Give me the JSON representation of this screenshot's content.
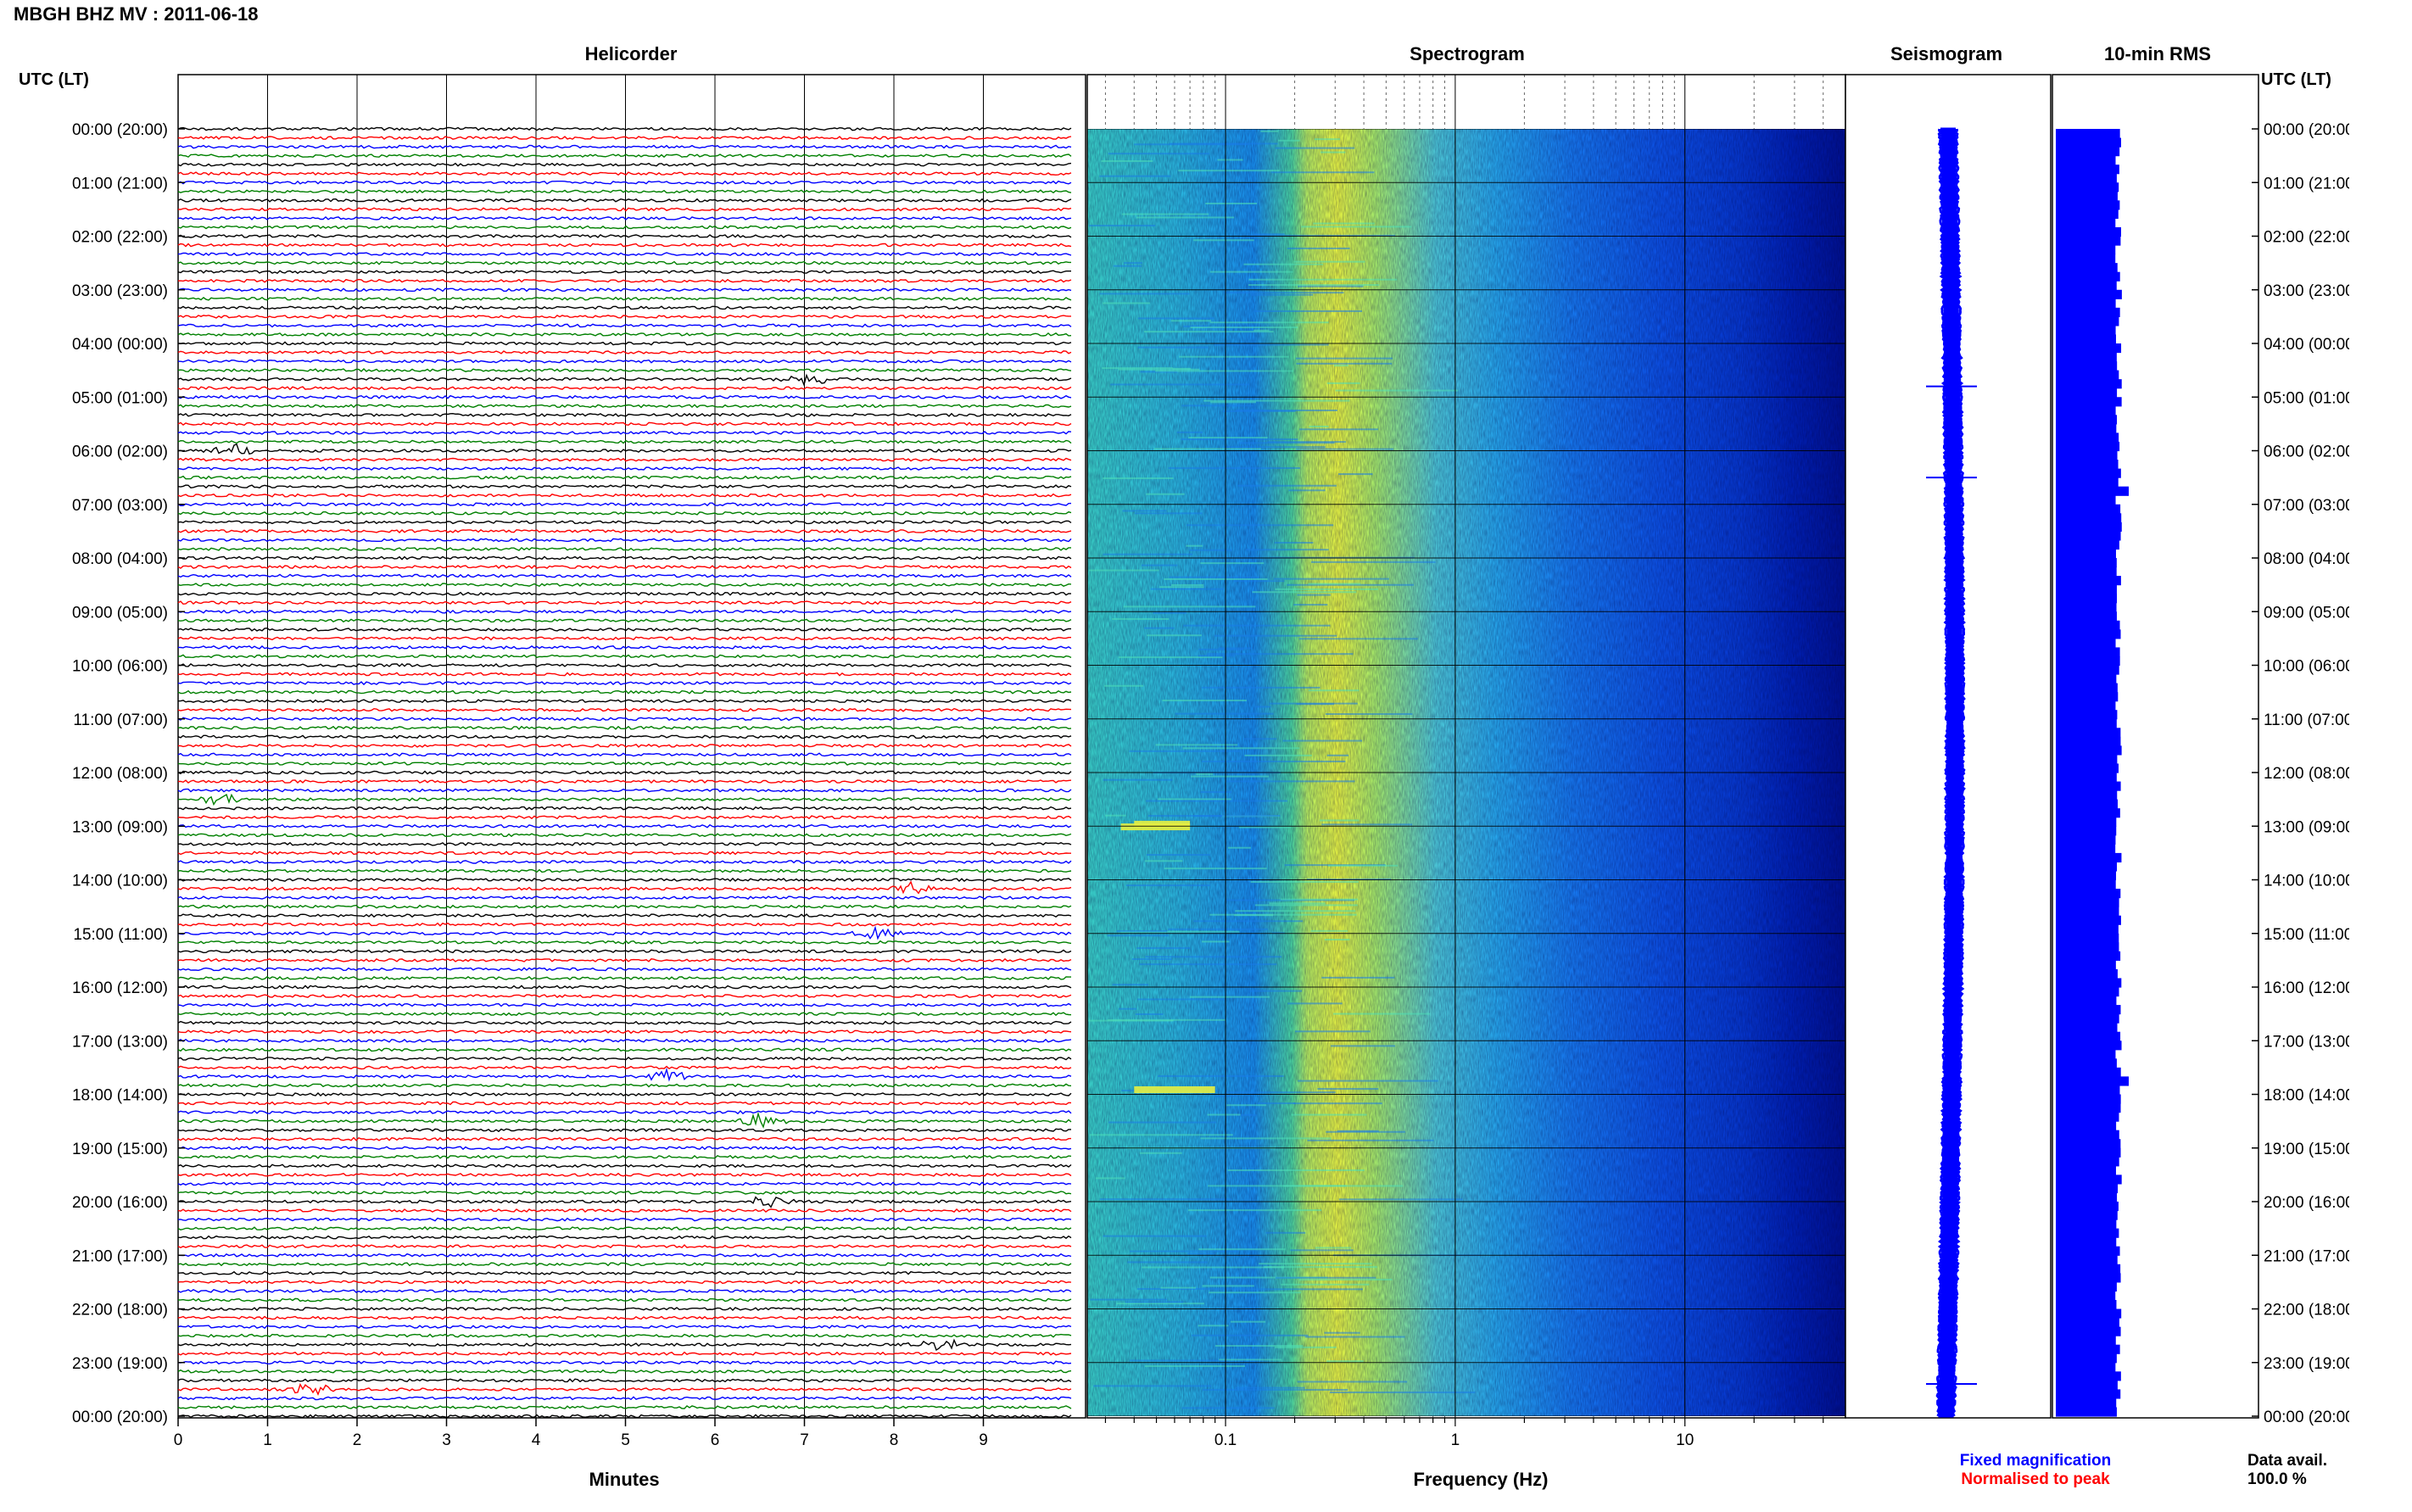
{
  "header": {
    "title": "MBGH BHZ MV : 2011-06-18",
    "tz_label_left": "UTC (LT)",
    "tz_label_right": "UTC (LT)"
  },
  "panels": {
    "helicorder": "Helicorder",
    "spectrogram": "Spectrogram",
    "seismogram": "Seismogram",
    "rms": "10-min RMS"
  },
  "footer": {
    "fixed_magnification": "Fixed magnification",
    "normalised_to_peak": "Normalised to peak",
    "data_avail_label": "Data avail.",
    "data_avail_value": "100.0 %"
  },
  "colors": {
    "fixed_magnification": "#0000ff",
    "normalised_to_peak": "#ff0000",
    "trace_cycle": [
      "#000000",
      "#ff0000",
      "#0000ff",
      "#008000"
    ],
    "seismogram": "#0000ff",
    "rms_bar": "#0000ff"
  },
  "chart_data": [
    {
      "type": "line",
      "name": "helicorder",
      "xlabel": "Minutes",
      "xlim": [
        0,
        10
      ],
      "x_ticks": [
        "0",
        "1",
        "2",
        "3",
        "4",
        "5",
        "6",
        "7",
        "8",
        "9"
      ],
      "rows_per_hour": 6,
      "row_minutes": 10,
      "y_ticks": [
        "00:00 (20:00)",
        "01:00 (21:00)",
        "02:00 (22:00)",
        "03:00 (23:00)",
        "04:00 (00:00)",
        "05:00 (01:00)",
        "06:00 (02:00)",
        "07:00 (03:00)",
        "08:00 (04:00)",
        "09:00 (05:00)",
        "10:00 (06:00)",
        "11:00 (07:00)",
        "12:00 (08:00)",
        "13:00 (09:00)",
        "14:00 (10:00)",
        "15:00 (11:00)",
        "16:00 (12:00)",
        "17:00 (13:00)",
        "18:00 (14:00)",
        "19:00 (15:00)",
        "20:00 (16:00)",
        "21:00 (17:00)",
        "22:00 (18:00)",
        "23:00 (19:00)",
        "00:00 (20:00)"
      ],
      "events": [
        {
          "row": 28,
          "minute": 7.0
        },
        {
          "row": 36,
          "minute": 0.6
        },
        {
          "row": 75,
          "minute": 0.5
        },
        {
          "row": 85,
          "minute": 8.2
        },
        {
          "row": 90,
          "minute": 7.8
        },
        {
          "row": 106,
          "minute": 5.5
        },
        {
          "row": 111,
          "minute": 6.5
        },
        {
          "row": 120,
          "minute": 6.6
        },
        {
          "row": 136,
          "minute": 8.5
        },
        {
          "row": 141,
          "minute": 1.5
        }
      ]
    },
    {
      "type": "heatmap",
      "name": "spectrogram",
      "xlabel": "Frequency (Hz)",
      "x_scale": "log",
      "xlim": [
        0.025,
        50
      ],
      "x_ticks": [
        "0.1",
        "1",
        "10"
      ],
      "x_tick_values": [
        0.1,
        1,
        10
      ],
      "hours": 24
    },
    {
      "type": "line",
      "name": "seismogram",
      "hours": 24,
      "spikes_at_hour": [
        4.8,
        6.5,
        23.4
      ]
    },
    {
      "type": "bar",
      "name": "rms",
      "rows_per_hour": 6,
      "spikes_at_hour": [
        6.6,
        17.6
      ]
    }
  ]
}
